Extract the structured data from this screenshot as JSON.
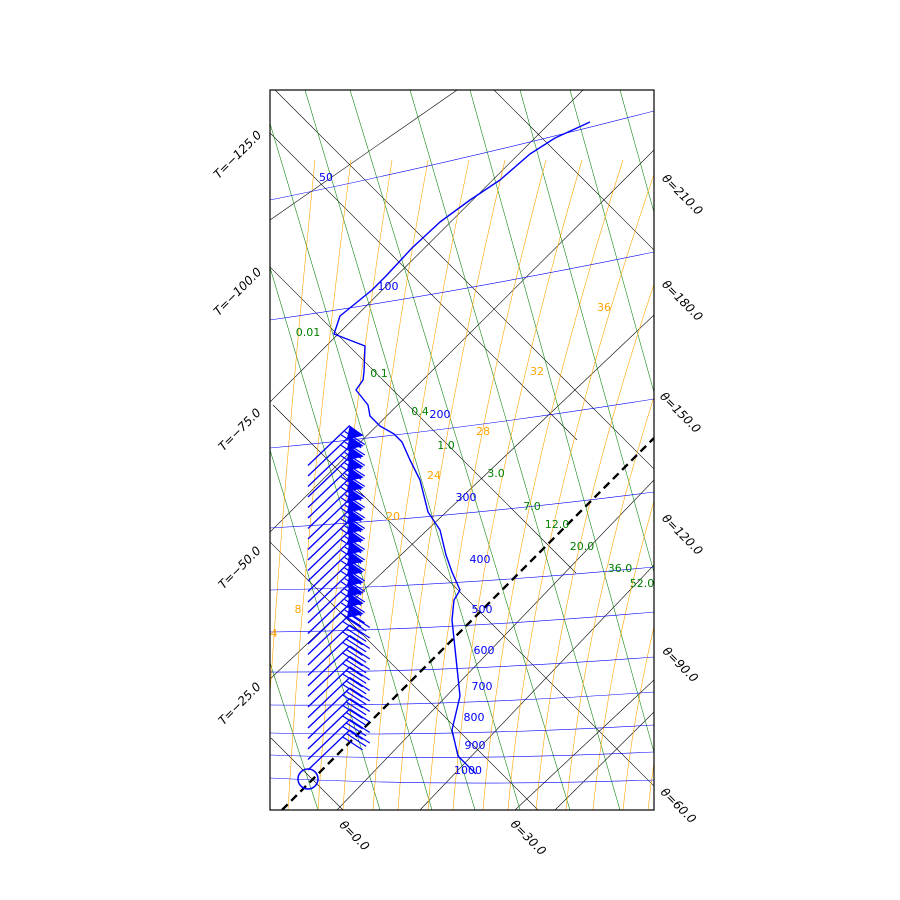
{
  "chart_data": {
    "type": "line",
    "title": "",
    "diagram": "tephigram",
    "colors": {
      "isotherm": "#000000",
      "dry_adiabat": "#000000",
      "isobar": "#0000ff",
      "mixing_ratio": "#008000",
      "wet_adiabat": "#ffa500",
      "profile": "#0000ff",
      "wind_barbs": "#0000ff",
      "parcel": "#000000"
    },
    "isotherm_labels": [
      "T=−125.0",
      "T=−100.0",
      "T=−75.0",
      "T=−50.0",
      "T=−25.0"
    ],
    "theta_labels": [
      "θ=0.0",
      "θ=30.0",
      "θ=60.0",
      "θ=90.0",
      "θ=120.0",
      "θ=150.0",
      "θ=180.0",
      "θ=210.0"
    ],
    "isobar_labels": [
      "50",
      "100",
      "200",
      "300",
      "400",
      "500",
      "600",
      "700",
      "800",
      "900",
      "1000"
    ],
    "mixing_ratio_labels": [
      "0.01",
      "0.1",
      "0.4",
      "1.0",
      "3.0",
      "7.0",
      "12.0",
      "20.0",
      "36.0",
      "52.0"
    ],
    "wet_adiabat_labels": [
      "4",
      "8",
      "20",
      "24",
      "28",
      "32",
      "36"
    ],
    "series": [
      {
        "kind": "temperature",
        "units": [
          "hPa",
          "°C"
        ],
        "points": [
          [
            1000,
            4.3
          ],
          [
            950,
            1.2
          ],
          [
            900,
            -1.5
          ],
          [
            850,
            -4.3
          ],
          [
            800,
            -7.4
          ],
          [
            750,
            -10.8
          ],
          [
            700,
            -14.2
          ],
          [
            650,
            -18.2
          ],
          [
            600,
            -22.5
          ],
          [
            550,
            -27.1
          ],
          [
            500,
            -32.1
          ],
          [
            450,
            -37.4
          ],
          [
            400,
            -43.0
          ],
          [
            350,
            -50.2
          ],
          [
            300,
            -56.8
          ],
          [
            250,
            -60.0
          ],
          [
            220,
            -61.5
          ],
          [
            200,
            -62.0
          ],
          [
            175,
            -64.4
          ],
          [
            150,
            -66.3
          ],
          [
            125,
            -67.4
          ],
          [
            100,
            -67.6
          ],
          [
            90,
            -66.5
          ],
          [
            80,
            -65.4
          ],
          [
            70,
            -63.2
          ],
          [
            60,
            -60.8
          ],
          [
            50,
            -58.3
          ],
          [
            40,
            -55.2
          ],
          [
            35,
            -53.4
          ],
          [
            30,
            -52.1
          ]
        ]
      }
    ],
    "wind_barbs": {
      "count": 30,
      "note": "strong westerly winds increasing with height, pennants aloft"
    },
    "parcel_start_marker": true
  }
}
